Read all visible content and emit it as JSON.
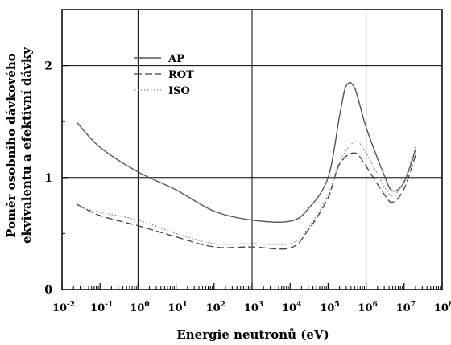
{
  "chart_data": {
    "type": "line",
    "title": "",
    "xlabel": "Energie neutronů (eV)",
    "ylabel_lines": [
      "Poměr osobního dávkového",
      "ekvivalentu a efektivní dávky"
    ],
    "x_scale": "log",
    "xlim": [
      0.01,
      100000000
    ],
    "ylim": [
      0,
      2.5
    ],
    "x_ticks": [
      {
        "base": "10",
        "exp": "-2"
      },
      {
        "base": "10",
        "exp": "-1"
      },
      {
        "base": "10",
        "exp": "0"
      },
      {
        "base": "10",
        "exp": "1"
      },
      {
        "base": "10",
        "exp": "2"
      },
      {
        "base": "10",
        "exp": "3"
      },
      {
        "base": "10",
        "exp": "4"
      },
      {
        "base": "10",
        "exp": "5"
      },
      {
        "base": "10",
        "exp": "6"
      },
      {
        "base": "10",
        "exp": "7"
      },
      {
        "base": "10",
        "exp": "8"
      }
    ],
    "y_ticks": [
      "0",
      "1",
      "2"
    ],
    "grid": true,
    "legend_position": "top-left",
    "series": [
      {
        "name": "AP",
        "style": "solid",
        "x": [
          0.025,
          0.1,
          1,
          10,
          100,
          1000,
          10000,
          30000,
          100000,
          200000,
          300000,
          500000,
          1000000,
          3000000,
          5000000,
          10000000,
          20000000
        ],
        "y": [
          1.49,
          1.27,
          1.05,
          0.89,
          0.7,
          0.62,
          0.61,
          0.72,
          1.0,
          1.55,
          1.82,
          1.8,
          1.45,
          1.02,
          0.88,
          0.96,
          1.25
        ]
      },
      {
        "name": "ROT",
        "style": "dashed",
        "x": [
          0.025,
          0.1,
          1,
          10,
          100,
          1000,
          10000,
          30000,
          100000,
          200000,
          500000,
          1000000,
          3000000,
          5000000,
          10000000,
          20000000
        ],
        "y": [
          0.76,
          0.66,
          0.57,
          0.47,
          0.38,
          0.38,
          0.37,
          0.53,
          0.82,
          1.12,
          1.22,
          1.1,
          0.85,
          0.78,
          0.9,
          1.2
        ]
      },
      {
        "name": "ISO",
        "style": "dotted",
        "x": [
          0.025,
          0.1,
          1,
          10,
          100,
          1000,
          10000,
          30000,
          100000,
          200000,
          500000,
          1000000,
          3000000,
          5000000,
          10000000,
          20000000
        ],
        "y": [
          0.74,
          0.69,
          0.62,
          0.5,
          0.41,
          0.41,
          0.41,
          0.55,
          0.85,
          1.14,
          1.32,
          1.22,
          0.92,
          0.84,
          0.97,
          1.28
        ]
      }
    ]
  }
}
